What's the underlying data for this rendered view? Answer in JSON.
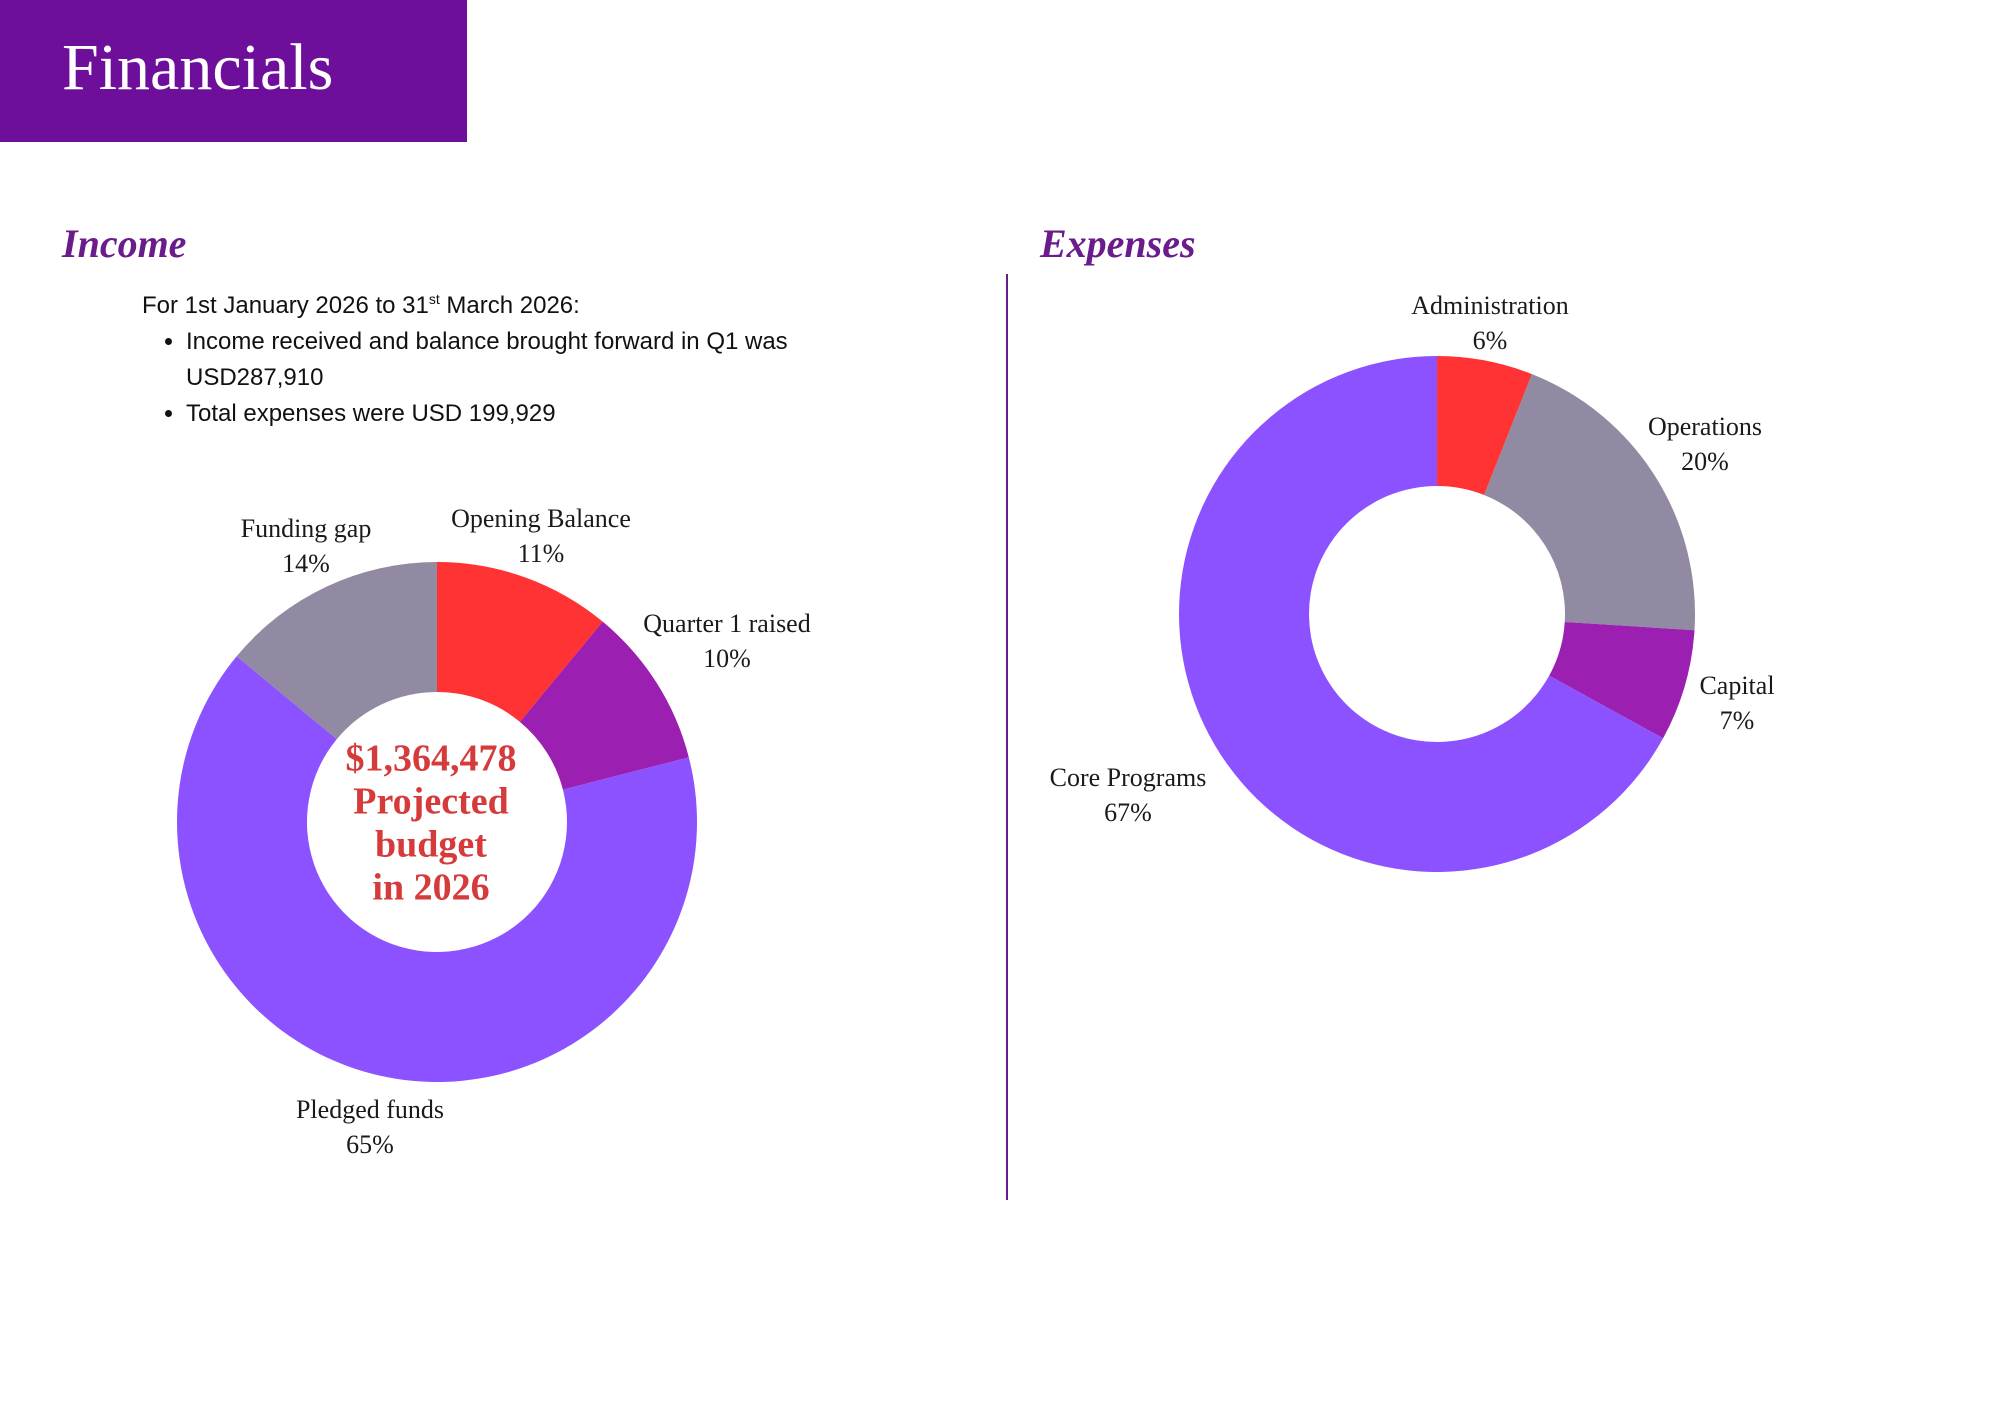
{
  "header": {
    "title": "Financials"
  },
  "income": {
    "title": "Income",
    "period_prefix": "For 1st January 2026 to 31",
    "period_sup": "st",
    "period_suffix": " March 2026:",
    "bullets": [
      "Income received and balance brought forward in Q1 was USD287,910",
      "Total expenses were USD 199,929"
    ]
  },
  "expenses": {
    "title": "Expenses"
  },
  "colors": {
    "accent": "#6e0f9c",
    "red": "#ff3333",
    "purple": "#9b1fb0",
    "violet": "#8c52ff",
    "grey": "#928aa3",
    "center_text": "#d63b3b"
  },
  "chart_data": [
    {
      "type": "pie",
      "title": "Income",
      "categories": [
        "Opening Balance",
        "Quarter 1 raised",
        "Pledged funds",
        "Funding gap"
      ],
      "values": [
        11,
        10,
        65,
        14
      ],
      "value_labels": [
        "11%",
        "10%",
        "65%",
        "14%"
      ],
      "unit": "%",
      "colors": [
        "#ff3333",
        "#9b1fb0",
        "#8c52ff",
        "#928aa3"
      ],
      "center_label": [
        "$1,364,478",
        "Projected",
        "budget",
        "in 2026"
      ]
    },
    {
      "type": "pie",
      "title": "Expenses",
      "categories": [
        "Administration",
        "Operations",
        "Capital",
        "Core Programs"
      ],
      "values": [
        6,
        20,
        7,
        67
      ],
      "value_labels": [
        "6%",
        "20%",
        "7%",
        "67%"
      ],
      "unit": "%",
      "colors": [
        "#ff3333",
        "#928aa3",
        "#9b1fb0",
        "#8c52ff"
      ]
    }
  ]
}
